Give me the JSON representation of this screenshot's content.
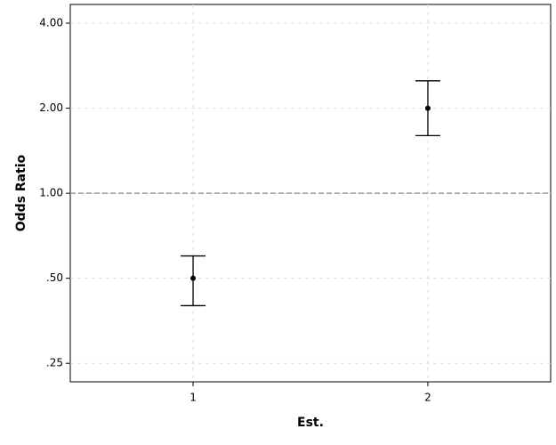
{
  "chart_data": {
    "type": "errorbar",
    "xlabel": "Est.",
    "ylabel": "Odds Ratio",
    "x": [
      1,
      2
    ],
    "values": [
      0.5,
      2.0
    ],
    "lower": [
      0.4,
      1.6
    ],
    "upper": [
      0.6,
      2.5
    ],
    "color": "#000000",
    "yscale": "log",
    "grid": true,
    "reference_line": 1,
    "xlim": [
      0.477,
      2.523
    ],
    "xticks": [
      1,
      2
    ],
    "ylim": [
      0.215,
      4.66
    ],
    "yticks": [
      {
        "value": 0.25,
        "label": ".25"
      },
      {
        "value": 0.5,
        "label": ".50"
      },
      {
        "value": 1,
        "label": "1.00"
      },
      {
        "value": 2,
        "label": "2.00"
      },
      {
        "value": 4,
        "label": "4.00"
      }
    ]
  }
}
